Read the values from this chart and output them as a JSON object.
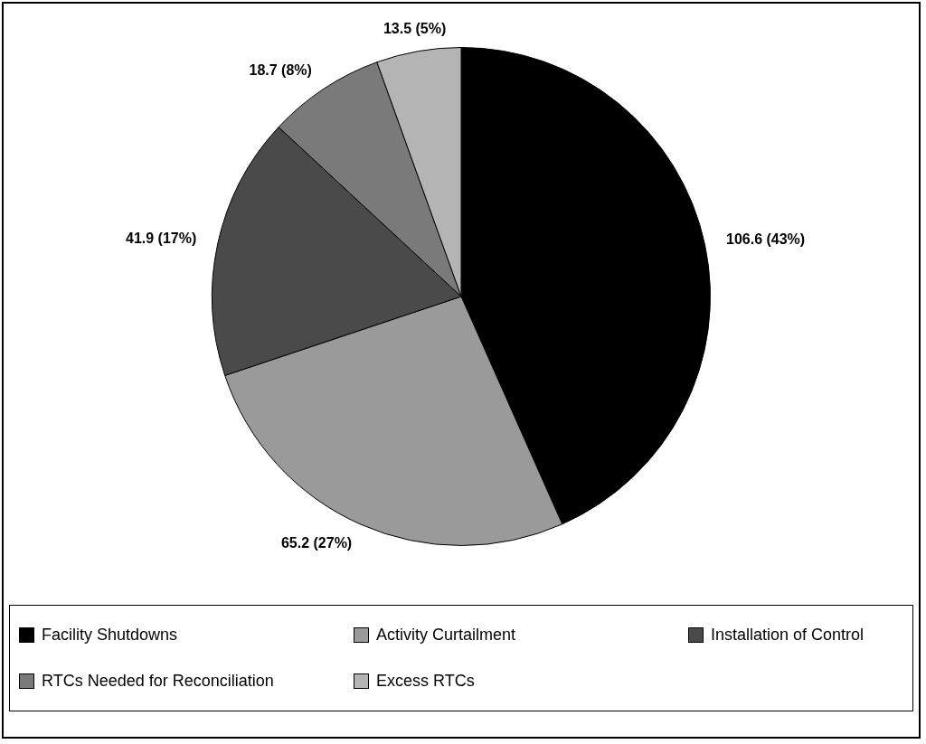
{
  "chart_data": {
    "type": "pie",
    "categories": [
      "Facility Shutdowns",
      "Activity Curtailment",
      "Installation of Control",
      "RTCs Needed for Reconciliation",
      "Excess RTCs"
    ],
    "values": [
      106.6,
      65.2,
      41.9,
      18.7,
      13.5
    ],
    "value_labels": [
      "106.6 (43%)",
      "65.2 (27%)",
      "41.9 (17%)",
      "18.7 (8%)",
      "13.5 (5%)"
    ],
    "colors": [
      "#000000",
      "#9a9a9a",
      "#4a4a4a",
      "#7a7a7a",
      "#b4b4b4"
    ],
    "legend": "bottom"
  }
}
